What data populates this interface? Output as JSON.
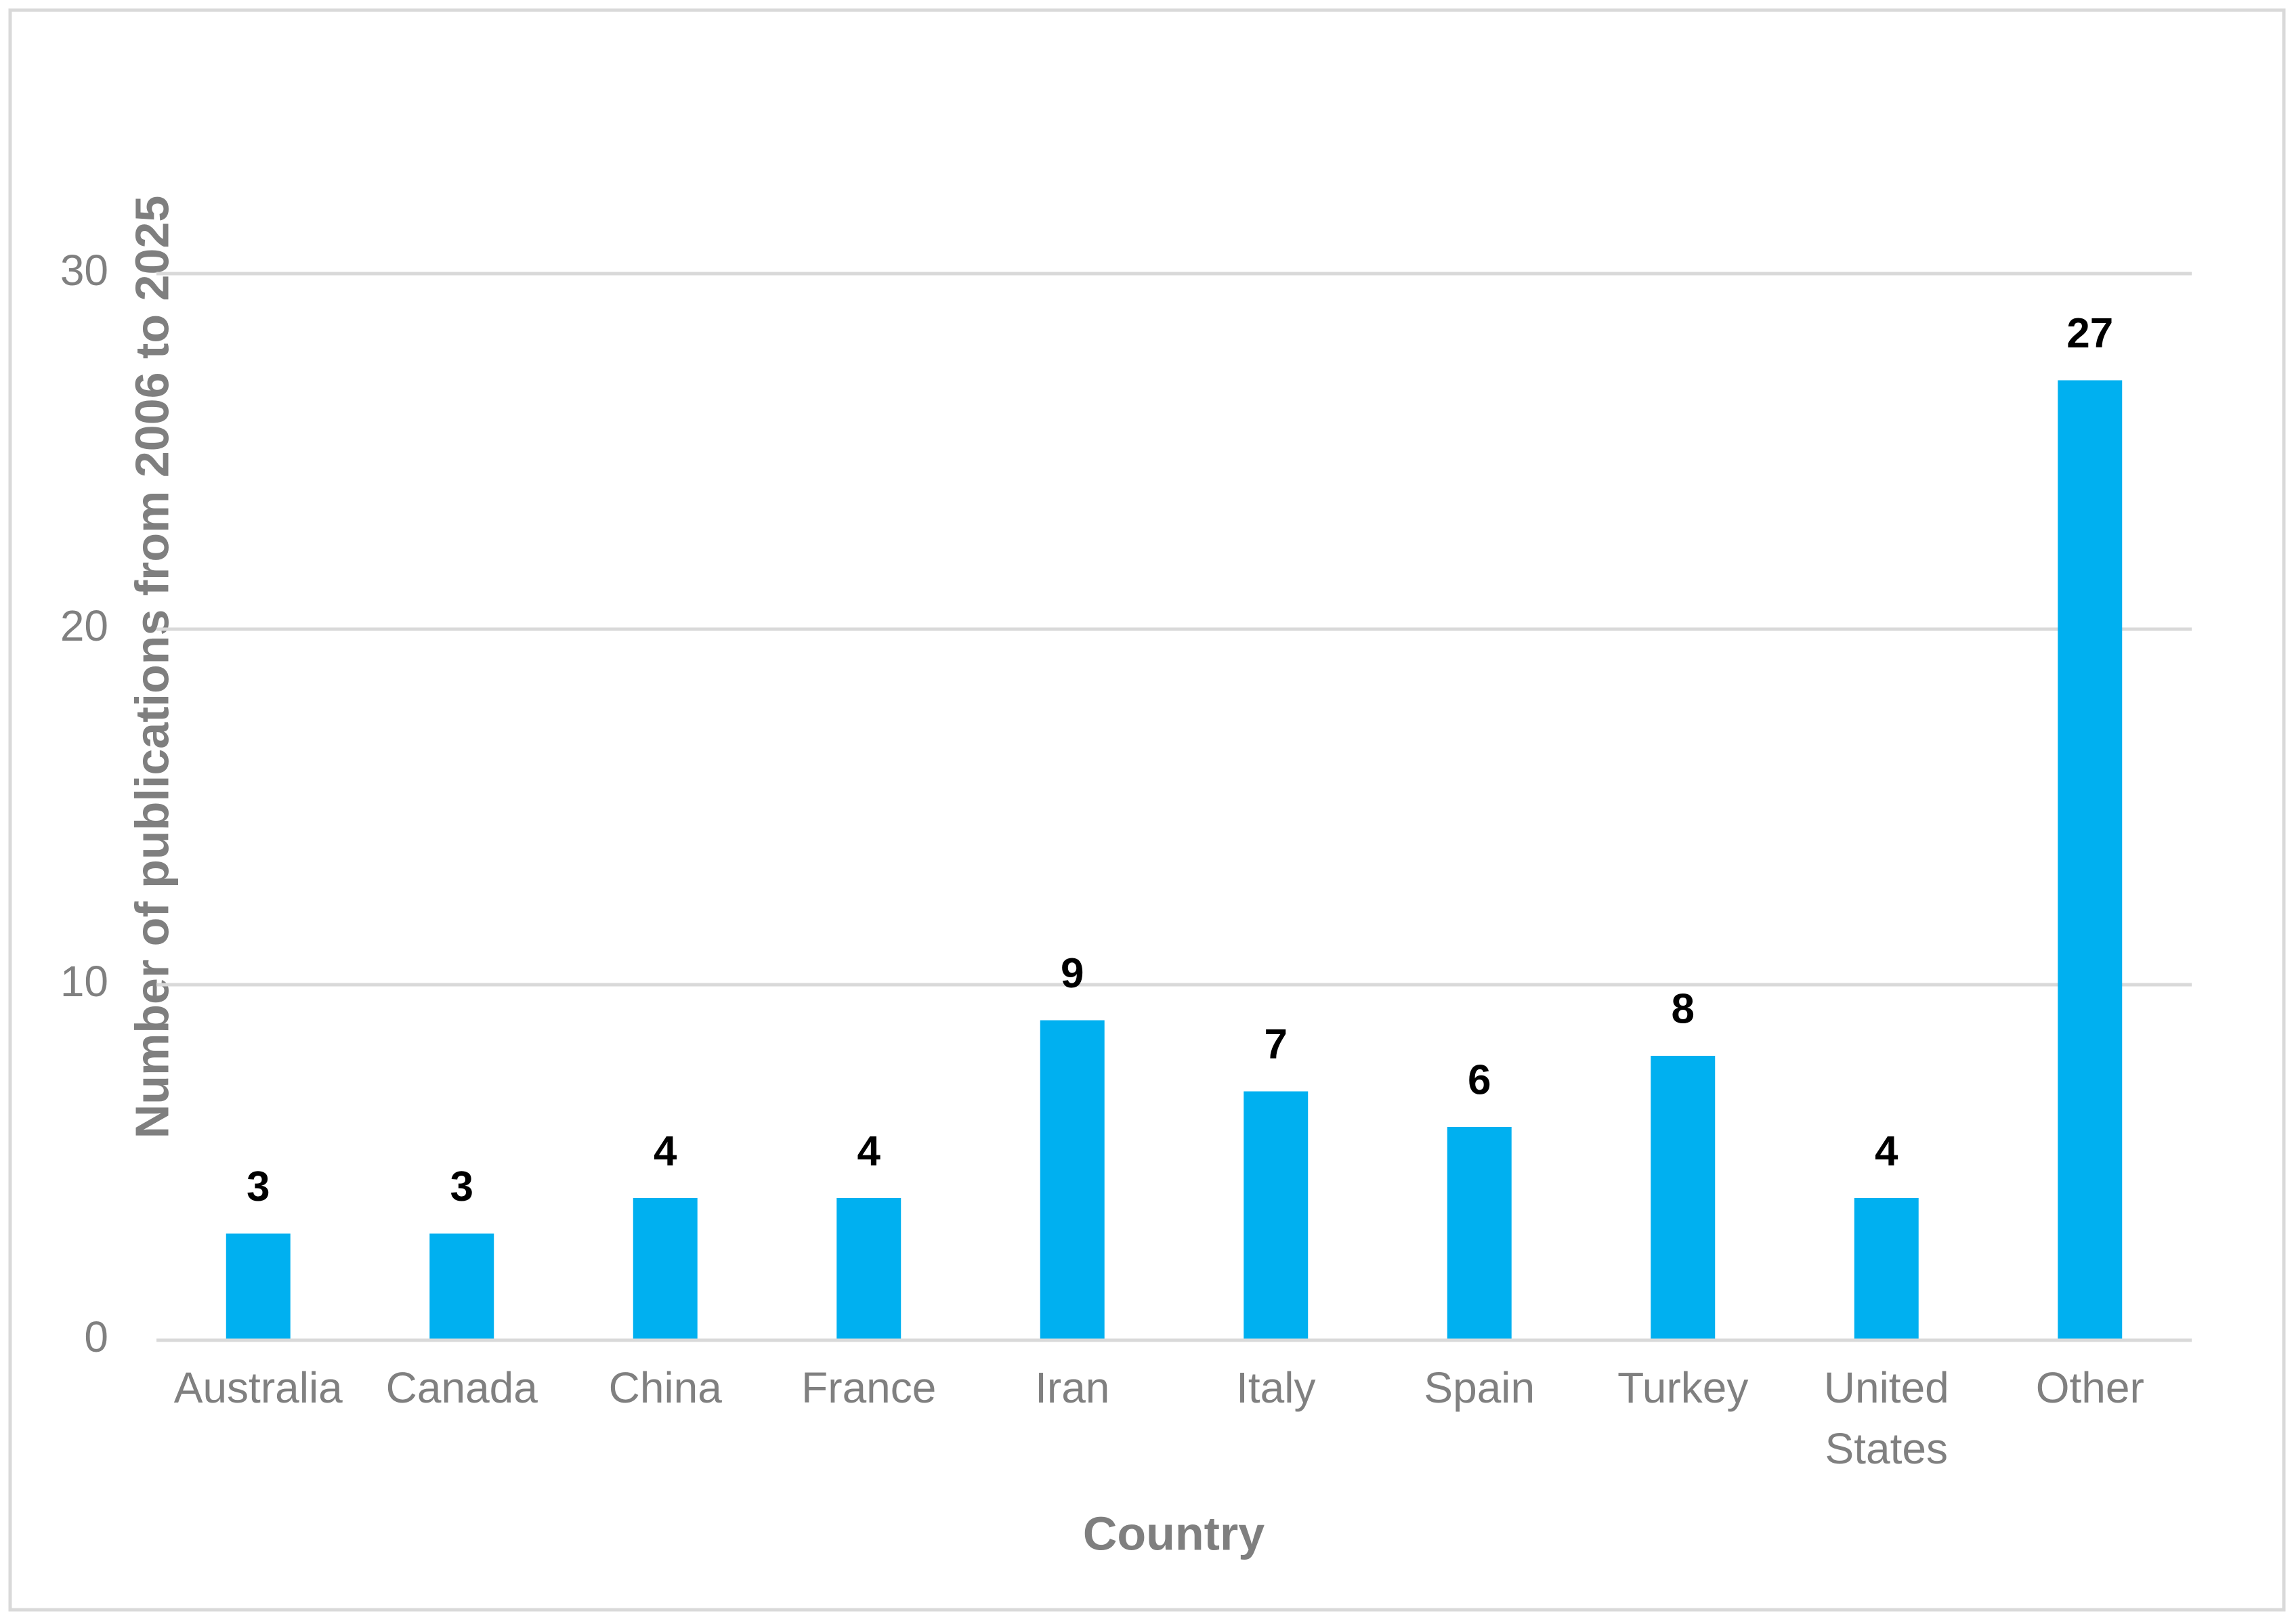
{
  "chart_data": {
    "type": "bar",
    "x_label": "Country",
    "y_label": "Number of publications from 2006 to 2025",
    "categories": [
      "Australia",
      "Canada",
      "China",
      "France",
      "Iran",
      "Italy",
      "Spain",
      "Turkey",
      "United States",
      "Other"
    ],
    "values": [
      3,
      3,
      4,
      4,
      9,
      7,
      6,
      8,
      4,
      27
    ],
    "color": "#00b0f0",
    "ylim": [
      0,
      30
    ],
    "yticks": [
      0,
      10,
      20,
      30
    ],
    "grid": true,
    "data_labels": true
  }
}
